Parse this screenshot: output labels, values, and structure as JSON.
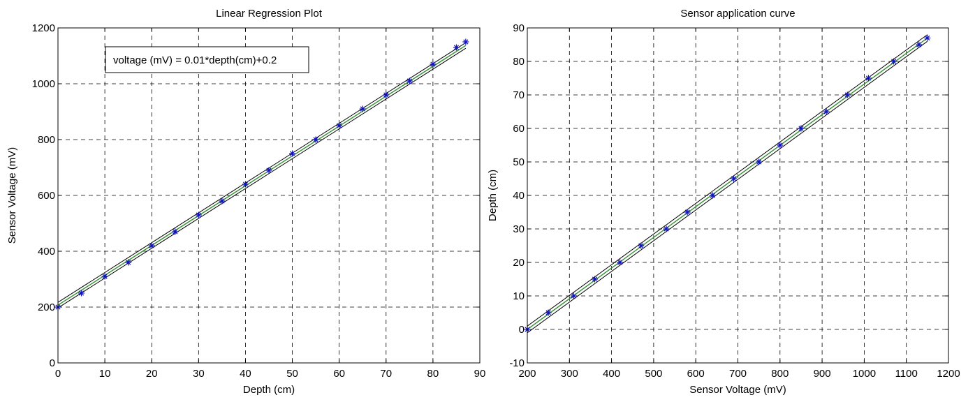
{
  "chart_data": [
    {
      "type": "line",
      "title": "Linear  Regression Plot",
      "xlabel": "Depth (cm)",
      "ylabel": "Sensor Voltage (mV)",
      "xlim": [
        0,
        90
      ],
      "ylim": [
        0,
        1200
      ],
      "xticks": [
        0,
        10,
        20,
        30,
        40,
        50,
        60,
        70,
        80,
        90
      ],
      "yticks": [
        0,
        200,
        400,
        600,
        800,
        1000,
        1200
      ],
      "grid": true,
      "annotation": "voltage (mV) = 0.01*depth(cm)+0.2",
      "markers": {
        "x": [
          0,
          5,
          10,
          15,
          20,
          25,
          30,
          35,
          40,
          45,
          50,
          55,
          60,
          65,
          70,
          75,
          80,
          85,
          87
        ],
        "y": [
          200,
          250,
          310,
          360,
          420,
          470,
          530,
          580,
          640,
          690,
          750,
          800,
          850,
          910,
          960,
          1010,
          1070,
          1130,
          1150
        ]
      },
      "fit_lines": {
        "x": [
          0,
          87
        ],
        "center": [
          207,
          1137
        ],
        "upper": [
          217,
          1147
        ],
        "lower": [
          197,
          1127
        ]
      },
      "colors": {
        "marker": "#1010c0",
        "center_line": "#2f8f2f",
        "band_lines": "#000000"
      }
    },
    {
      "type": "line",
      "title": "Sensor application curve",
      "xlabel": "Sensor Voltage (mV)",
      "ylabel": "Depth (cm)",
      "xlim": [
        200,
        1200
      ],
      "ylim": [
        -10,
        90
      ],
      "xticks": [
        200,
        300,
        400,
        500,
        600,
        700,
        800,
        900,
        1000,
        1100,
        1200
      ],
      "yticks": [
        -10,
        0,
        10,
        20,
        30,
        40,
        50,
        60,
        70,
        80,
        90
      ],
      "grid": true,
      "markers": {
        "x": [
          200,
          250,
          310,
          360,
          420,
          470,
          530,
          580,
          640,
          690,
          750,
          800,
          850,
          910,
          960,
          1010,
          1070,
          1130,
          1150
        ],
        "y": [
          0,
          5,
          10,
          15,
          20,
          25,
          30,
          35,
          40,
          45,
          50,
          55,
          60,
          65,
          70,
          75,
          80,
          85,
          87
        ]
      },
      "fit_lines": {
        "x": [
          200,
          1150
        ],
        "center": [
          0,
          87
        ],
        "upper": [
          1,
          88
        ],
        "lower": [
          -1,
          86
        ]
      },
      "colors": {
        "marker": "#1010c0",
        "center_line": "#2f8f2f",
        "band_lines": "#000000"
      }
    }
  ]
}
